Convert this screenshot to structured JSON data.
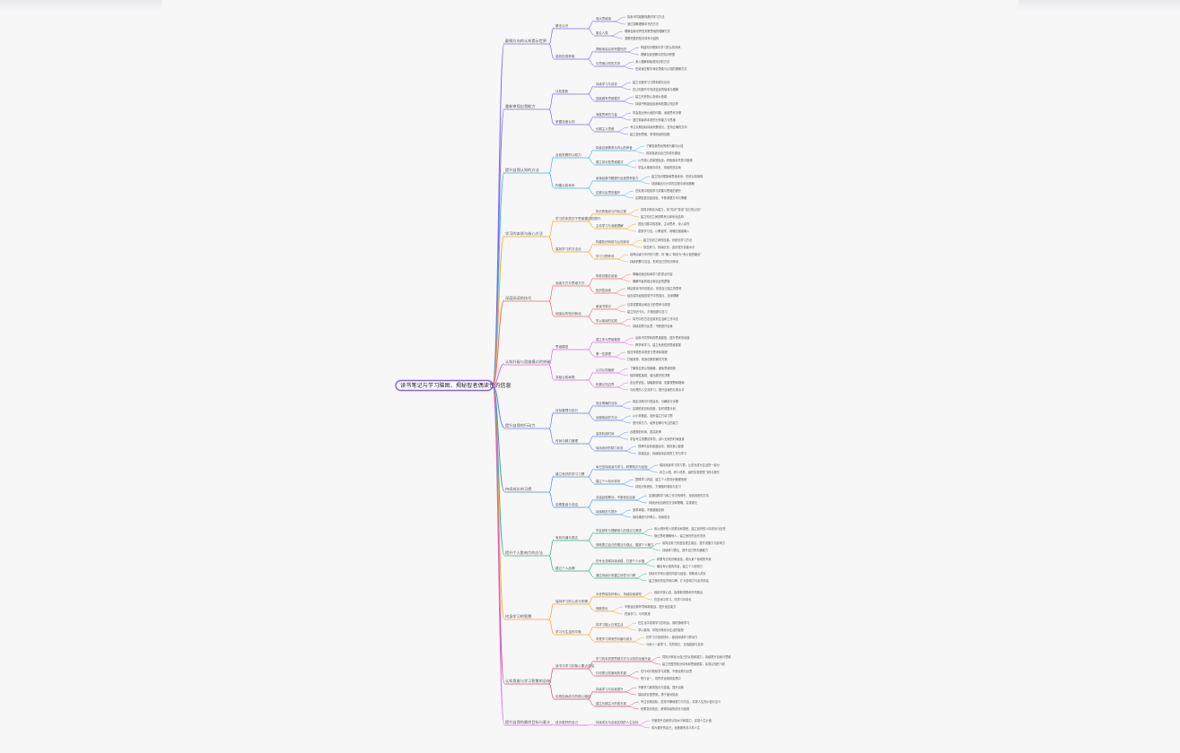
{
  "root": {
    "label": "读书笔记与学习脑图，揭秘智者偶读性的信息"
  },
  "branches": [
    {
      "label": "颠倒方向的认知提示世界",
      "color": "#7c6cf0",
      "children": [
        {
          "label": "看法认识",
          "children": [
            {
              "label": "强大思维观",
              "children": [
                "探索不同观察视角的学习方法",
                "透过观察理解本书的方式"
              ]
            },
            {
              "label": "看见人类",
              "children": [
                "理解自我世界的关联思维的理解方式",
                "洞察完整的知识体系与结构"
              ]
            }
          ]
        },
        {
          "label": "高效信息获取",
          "children": [
            {
              "label": "提取信息后的完整知识",
              "children": [
                "构建知识框架中学习的认知体系",
                "理解自我觉察中的知识积累"
              ]
            },
            {
              "label": "与思维认知的共享",
              "children": [
                "深入理解和吸收知识的方法",
                "在阅读过程中深化思维与认知的理解方式"
              ]
            }
          ]
        }
      ]
    },
    {
      "label": "重新审视自我能力",
      "color": "#7c6cf0",
      "children": [
        {
          "label": "认知更新",
          "children": [
            {
              "label": "持续学习与改变",
              "children": [
                "建立长期学习习惯和成长目标",
                "在认知提升中完成信息的吸收与理解"
              ]
            },
            {
              "label": "突破固有思维模式",
              "children": [
                "建立开放的心态和价值观",
                "持续不断挑战自我和拓展认知边界"
              ]
            }
          ]
        },
        {
          "label": "掌握深度认知",
          "children": [
            {
              "label": "深度思考的力量",
              "children": [
                "学会提出有价值的问题，深度思考决策",
                "透过现象看本质的分析能力与思维"
              ]
            },
            {
              "label": "长期主义思维",
              "children": [
                "专注长期目标持续积累成长，坚持正确的方向",
                "建立复利思维，获得持续的回报"
              ]
            }
          ]
        }
      ]
    },
    {
      "label": "提升自我认知的方法",
      "color": "#3fb6d8",
      "children": [
        {
          "label": "自我觉察的认知力",
          "children": [
            {
              "label": "探索自我需求与内心的声音",
              "children": [
                "了解自我的优势和兴趣与价值",
                "找到最适合自己的成长路径"
              ]
            },
            {
              "label": "建立成长型思维模式",
              "children": [
                "以开放心态接受挑战，积极面对失败与困难",
                "学会从错误中成长，持续改进自我"
              ]
            }
          ]
        },
        {
          "label": "构建认知体系",
          "children": [
            {
              "label": "阅读经典书籍提升自我思考能力",
              "children": [
                "建立知识框架和思维体系，形成认知网络",
                "持续输出与分享的过程中深化理解"
              ]
            },
            {
              "label": "实践与反思的循环",
              "children": [
                "在实践中检验学习成果与思维的提升",
                "定期复盘总结经验，不断调整方向与策略"
              ]
            }
          ]
        }
      ]
    },
    {
      "label": "学习的本质与核心方法",
      "color": "#f5a623",
      "children": [
        {
          "label": "学习的本质在于思维模式的提升",
          "children": [
            {
              "label": "知识的吸收与内化过程",
              "children": [
                "将知识转化为能力，将“知识”变成“自己的认知”",
                "建立知识之间的联系与体系化结构"
              ]
            },
            {
              "label": "主动学习与深度理解",
              "children": [
                "提出问题寻找答案，主动思考，深入探究",
                "费曼学习法，以教促学，用输出倒逼输入"
              ]
            }
          ]
        },
        {
          "label": "高效学习的方法论",
          "children": [
            {
              "label": "构建知识网络与认知体系",
              "children": [
                "建立知识之间的连接，系统化学习方法",
                "刻意练习，持续反馈，逐步提升技能水平"
              ]
            },
            {
              "label": "学习习惯养成",
              "children": [
                "培养阅读与写作的习惯，将“输入”转化为“有价值的输出”",
                "持续积累与沉淀，形成自己的知识体系"
              ]
            }
          ]
        }
      ]
    },
    {
      "label": "深度阅读的技巧",
      "color": "#f06a6a",
      "children": [
        {
          "label": "阅读方式与思维方式",
          "children": [
            {
              "label": "带着问题去阅读",
              "children": [
                "明确阅读目标和学习的重点内容",
                "理解作者的观点和论证的逻辑"
              ]
            },
            {
              "label": "批判性阅读",
              "children": [
                "辩证看待书中的观点，形成自己独立的思考",
                "结合实际经验检验书中的观点，加深理解"
              ]
            }
          ]
        },
        {
          "label": "阅读后的知识转化",
          "children": [
            {
              "label": "做读书笔记",
              "children": [
                "记录重要观点和自己的思考与感悟",
                "建立知识卡片，方便回顾与复习"
              ]
            },
            {
              "label": "学以致用的实践",
              "children": [
                "将书中的方法应用到生活和工作中去",
                "持续实践与反思，不断提升自我"
              ]
            }
          ]
        }
      ]
    },
    {
      "label": "认知升级与思维模式的突破",
      "color": "#d86bd8",
      "children": [
        {
          "label": "思维模型",
          "children": [
            {
              "label": "建立多元思维模型",
              "children": [
                "运用不同学科的思维模型，提升思考的深度",
                "跨学科学习，建立系统性的思维框架"
              ]
            },
            {
              "label": "第一性原理",
              "children": [
                "回归事物的本质进行思考和推理",
                "打破常规，找到创新的解决方案"
              ]
            }
          ]
        },
        {
          "label": "突破认知局限",
          "children": [
            {
              "label": "认识认知偏差",
              "children": [
                "了解常见的认知偏差，避免思维陷阱",
                "保持理性客观，做出更好的决策"
              ]
            },
            {
              "label": "拓展认知边界",
              "children": [
                "走出舒适区，接触新领域，拓展视野和格局",
                "与优秀的人交流学习，提升自我的认知水平"
              ]
            }
          ]
        }
      ]
    },
    {
      "label": "提升自我的行动力",
      "color": "#6a7cf0",
      "children": [
        {
          "label": "目标管理与执行",
          "children": [
            {
              "label": "设定明确的目标",
              "children": [
                "制定清晰可行的目标，分解执行步骤",
                "定期检查目标进度，及时调整计划"
              ]
            },
            {
              "label": "克服拖延的方法",
              "children": [
                "从小事做起，逐步建立行动习惯",
                "提升执行力，培养自律与专注的能力"
              ]
            }
          ]
        },
        {
          "label": "时间与精力管理",
          "children": [
            {
              "label": "高效利用时间",
              "children": [
                "合理规划时间，提高效率",
                "学会专注重要的事情，减少无效的时间浪费"
              ]
            },
            {
              "label": "保持良好的精力状态",
              "children": [
                "规律作息和适度运动，保持身心健康",
                "劳逸结合，持续保持高效的工作与学习"
              ]
            }
          ]
        }
      ]
    },
    {
      "label": "持续成长的习惯",
      "color": "#4a90e2",
      "children": [
        {
          "label": "建立良好的学习习惯",
          "children": [
            {
              "label": "每日坚持阅读与学习，积累知识与经验",
              "children": [
                "保持持续学习的习惯，让成长成为生活的一部分",
                "持之以恒，积少成多，最终实现质的飞跃与提升"
              ]
            },
            {
              "label": "建立个人知识体系",
              "children": [
                "整理学习内容，建立个人的知识管理系统",
                "将知识系统化，方便随时调用与复习"
              ]
            }
          ]
        },
        {
          "label": "定期复盘与总结",
          "children": [
            {
              "label": "总结经验教训，不断优化自我",
              "children": [
                "定期回顾学习和工作中的得失，找到改进的方向",
                "持续优化自我的方法和策略，实现成长"
              ]
            },
            {
              "label": "持续精进与提升",
              "children": [
                "追求卓越，不断超越自我",
                "保持谦虚与好奇心，持续成长"
              ]
            }
          ]
        }
      ]
    },
    {
      "label": "提升个人影响力的方法",
      "color": "#2bb673",
      "children": [
        {
          "label": "有效沟通与表达",
          "children": [
            {
              "label": "学会倾听与理解他人的观点与需求",
              "children": [
                "用心倾听别人的想法和感受，建立良好的人际关系与信任",
                "换位思考理解他人，建立良好的合作关系"
              ]
            },
            {
              "label": "清晰表达自己的想法与观点，展现个人魅力",
              "children": [
                "用简洁有力的语言表达观点，提升说服力与影响力",
                "持续练习表达，提升自己的沟通能力"
              ]
            }
          ]
        },
        {
          "label": "建立个人品牌",
          "children": [
            {
              "label": "在专业领域持续深耕，打造个人价值",
              "children": [
                "积累专业知识和经验，成为某个领域的专家",
                "输出有价值的内容，建立个人影响力"
              ]
            },
            {
              "label": "通过持续分享建立信任与口碑",
              "children": [
                "持续分享有价值的内容与经验，帮助他人成长",
                "建立良好的信誉和口碑，扩大影响力与合作机会"
              ]
            }
          ]
        }
      ]
    },
    {
      "label": "终身学习的智慧",
      "color": "#f5a623",
      "children": [
        {
          "label": "保持学习的心态与热情",
          "children": [
            {
              "label": "对世界保持好奇心，持续探索新知",
              "children": [
                "保持开放心态，接受新事物和不同观点",
                "在变化中学习，在学习中成长"
              ]
            },
            {
              "label": "拥抱变化",
              "children": [
                "不断适应新环境和新挑战，提升适应能力",
                "终身学习，与时俱进"
              ]
            }
          ]
        },
        {
          "label": "学习与生活的平衡",
          "children": [
            {
              "label": "将学习融入日常生活",
              "children": [
                "在生活中发现学习的机会，随时随地学习",
                "学以致用，将知识转化为生活的智慧"
              ]
            },
            {
              "label": "享受学习带来的乐趣与成长",
              "children": [
                "在学习中找到快乐，保持持续学习的动力",
                "与他人一起学习，共同成长，互相激励与支持"
              ]
            }
          ]
        }
      ]
    },
    {
      "label": "认知思维与学习智慧的总结",
      "color": "#e0457b",
      "children": [
        {
          "label": "读书与学习的核心要点总结",
          "children": [
            {
              "label": "学习的本质是思维方式与认知的全面升级",
              "children": [
                "将知识转化为自己的认知和能力，持续提升自我与思维",
                "建立完整的知识体系和思维框架，实现认知的飞跃"
              ]
            },
            {
              "label": "行动是认知落地的关键",
              "children": [
                "在行动中检验学习成果，不断实践与反思",
                "知行合一，将所学运用到实践中"
              ]
            }
          ]
        },
        {
          "label": "实现自我成长的核心路径",
          "children": [
            {
              "label": "持续学习与自我提升",
              "children": [
                "不断学习新的知识与技能，提升自我",
                "保持成长型思维，勇于面对挑战"
              ]
            },
            {
              "label": "建立长期主义的成长观",
              "children": [
                "专注长期目标，坚持不懈地努力与付出，实现人生的价值与意义",
                "积累复利效应，获得持续的成长与回报"
              ]
            }
          ]
        }
      ]
    },
    {
      "label": "提升自我的最终目标与意义",
      "color": "#d86bd8",
      "children": [
        {
          "label": "成为更好的自己",
          "children": [
            {
              "label": "持续成长与自我实现的人生目标",
              "children": [
                "不断提升自我的认知水平和能力，实现人生价值",
                "成为更好的自己，创造更有意义的人生"
              ]
            }
          ]
        }
      ]
    }
  ]
}
